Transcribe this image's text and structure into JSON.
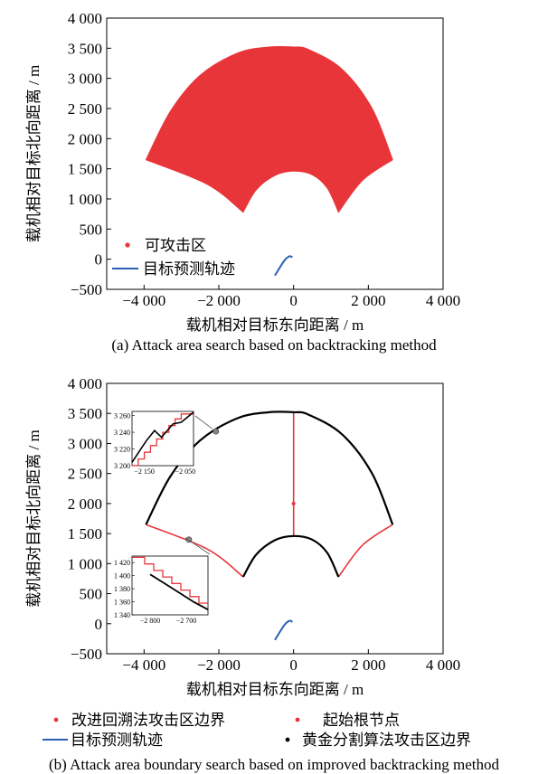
{
  "figure": {
    "caption_a": "(a) Attack area search based on backtracking method",
    "caption_b": "(b) Attack area boundary search based on improved backtracking method"
  },
  "colors": {
    "attack_area": "#e8353a",
    "target_track": "#2b5fb4",
    "golden_boundary": "#000000",
    "start_node": "#e8353a"
  },
  "chart_data": [
    {
      "type": "scatter",
      "panel": "a",
      "xlabel": "载机相对目标东向距离 / m",
      "ylabel": "载机相对目标北向距离 / m",
      "xlim": [
        -5000,
        4000
      ],
      "ylim": [
        -500,
        4000
      ],
      "xticks": [
        -4000,
        -2000,
        0,
        2000,
        4000
      ],
      "xtick_labels": [
        "−4 000",
        "−2 000",
        "0",
        "2 000",
        "4 000"
      ],
      "yticks": [
        -500,
        0,
        500,
        1000,
        1500,
        2000,
        2500,
        3000,
        3500,
        4000
      ],
      "ytick_labels": [
        "−500",
        "0",
        "500",
        "1 000",
        "1 500",
        "2 000",
        "2 500",
        "3 000",
        "3 500",
        "4 000"
      ],
      "grid": false,
      "legend_position": "bottom-left",
      "series": [
        {
          "name": "可攻击区",
          "kind": "filled-region",
          "outer_arc": [
            [
              -3950,
              1650
            ],
            [
              -3300,
              2450
            ],
            [
              -2500,
              3050
            ],
            [
              -1500,
              3420
            ],
            [
              -650,
              3520
            ],
            [
              0,
              3520
            ],
            [
              400,
              3480
            ],
            [
              1300,
              3150
            ],
            [
              2100,
              2500
            ],
            [
              2650,
              1650
            ]
          ],
          "lower_right": [
            [
              2650,
              1650
            ],
            [
              1850,
              1310
            ],
            [
              1200,
              780
            ]
          ],
          "inner_arc": [
            [
              1200,
              780
            ],
            [
              900,
              1180
            ],
            [
              500,
              1400
            ],
            [
              0,
              1460
            ],
            [
              -500,
              1390
            ],
            [
              -1000,
              1150
            ],
            [
              -1350,
              780
            ]
          ],
          "lower_left": [
            [
              -1350,
              780
            ],
            [
              -2300,
              1240
            ],
            [
              -3950,
              1650
            ]
          ]
        },
        {
          "name": "目标预测轨迹",
          "kind": "line",
          "points": [
            [
              -500,
              -270
            ],
            [
              -400,
              -170
            ],
            [
              -300,
              -70
            ],
            [
              -200,
              10
            ],
            [
              -100,
              50
            ],
            [
              -30,
              30
            ]
          ]
        }
      ]
    },
    {
      "type": "line",
      "panel": "b",
      "xlabel": "载机相对目标东向距离 / m",
      "ylabel": "载机相对目标北向距离 / m",
      "xlim": [
        -5000,
        4000
      ],
      "ylim": [
        -500,
        4000
      ],
      "xticks": [
        -4000,
        -2000,
        0,
        2000,
        4000
      ],
      "xtick_labels": [
        "−4 000",
        "−2 000",
        "0",
        "2 000",
        "4 000"
      ],
      "yticks": [
        -500,
        0,
        500,
        1000,
        1500,
        2000,
        2500,
        3000,
        3500,
        4000
      ],
      "ytick_labels": [
        "−500",
        "0",
        "500",
        "1 000",
        "1 500",
        "2 000",
        "2 500",
        "3 000",
        "3 500",
        "4 000"
      ],
      "grid": false,
      "legend_position": "below",
      "series": [
        {
          "name": "改进回溯法攻击区边界",
          "kind": "line",
          "segments": [
            [
              [
                -3950,
                1650
              ],
              [
                -2300,
                1240
              ],
              [
                -1350,
                780
              ]
            ],
            [
              [
                2650,
                1650
              ],
              [
                1850,
                1310
              ],
              [
                1200,
                780
              ]
            ],
            [
              [
                0,
                3520
              ],
              [
                0,
                1460
              ]
            ]
          ]
        },
        {
          "name": "起始根节点",
          "kind": "point",
          "points": [
            [
              0,
              2000
            ]
          ]
        },
        {
          "name": "目标预测轨迹",
          "kind": "line",
          "points": [
            [
              -500,
              -270
            ],
            [
              -400,
              -170
            ],
            [
              -300,
              -70
            ],
            [
              -200,
              10
            ],
            [
              -100,
              50
            ],
            [
              -30,
              30
            ]
          ]
        },
        {
          "name": "黄金分割算法攻击区边界",
          "kind": "line",
          "segments": [
            [
              [
                -3950,
                1650
              ],
              [
                -3300,
                2450
              ],
              [
                -2500,
                3050
              ],
              [
                -1500,
                3420
              ],
              [
                -650,
                3520
              ],
              [
                0,
                3520
              ],
              [
                400,
                3480
              ],
              [
                1300,
                3150
              ],
              [
                2100,
                2500
              ],
              [
                2650,
                1650
              ]
            ],
            [
              [
                1200,
                780
              ],
              [
                900,
                1180
              ],
              [
                500,
                1400
              ],
              [
                0,
                1460
              ],
              [
                -500,
                1390
              ],
              [
                -1000,
                1150
              ],
              [
                -1350,
                780
              ]
            ]
          ]
        }
      ],
      "insets": [
        {
          "name": "upper-inset",
          "xlim": [
            -2180,
            -2030
          ],
          "ylim": [
            3200,
            3265
          ],
          "xtick_labels": [
            "−2 150",
            "−2 050"
          ],
          "xticks": [
            -2150,
            -2050
          ],
          "ytick_labels": [
            "3 200",
            "3 220",
            "3 240",
            "3 260"
          ],
          "yticks": [
            3200,
            3220,
            3240,
            3260
          ],
          "focus_point": [
            -2080,
            3200
          ]
        },
        {
          "name": "lower-inset",
          "xlim": [
            -2850,
            -2640
          ],
          "ylim": [
            1340,
            1430
          ],
          "xtick_labels": [
            "−2 800",
            "−2 700"
          ],
          "xticks": [
            -2800,
            -2700
          ],
          "ytick_labels": [
            "1 340",
            "1 360",
            "1 380",
            "1 400",
            "1 420"
          ],
          "yticks": [
            1340,
            1360,
            1380,
            1400,
            1420
          ],
          "focus_point": [
            -2800,
            1400
          ]
        }
      ]
    }
  ]
}
